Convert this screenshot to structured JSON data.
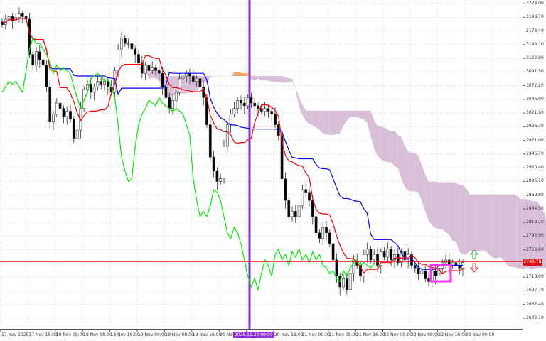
{
  "chart_data": {
    "type": "candlestick",
    "indicator": "ichimoku",
    "y_ticks": [
      "3224.00",
      "3198.70",
      "3173.40",
      "3148.10",
      "3122.80",
      "3097.50",
      "3072.20",
      "3046.90",
      "3021.60",
      "2996.30",
      "2971.00",
      "2945.70",
      "2920.40",
      "2895.10",
      "2869.80",
      "2844.50",
      "2819.20",
      "2793.90",
      "2768.60",
      "2718.00",
      "2692.70",
      "2667.40",
      "2642.10"
    ],
    "ylim": [
      2642.1,
      3224.0
    ],
    "x_ticks": [
      "17 Nov 2025",
      "17 Nov 16:00",
      "18 Nov 00:00",
      "18 Nov 08:00",
      "18 Nov 16:00",
      "19 Nov 00:00",
      "19 Nov 08:00",
      "19 Nov 16:00",
      "20 Nov",
      "",
      "20 Nov 16:00",
      "21 Nov 00:00",
      "21 Nov 08:00",
      "21 Nov 16:00",
      "22 Nov 00:00",
      "22 Nov 08:00",
      "22 Nov 16:00",
      "23 Nov 00:00"
    ],
    "closes": [
      3185,
      3195,
      3200,
      3192,
      3198,
      3205,
      3200,
      3195,
      3130,
      3110,
      3135,
      3120,
      3110,
      3070,
      3005,
      3020,
      3040,
      3030,
      3015,
      3025,
      3010,
      2975,
      2990,
      3030,
      3065,
      3075,
      3060,
      3070,
      3080,
      3075,
      3080,
      3070,
      3060,
      3100,
      3140,
      3160,
      3150,
      3150,
      3140,
      3130,
      3115,
      3095,
      3110,
      3100,
      3105,
      3100,
      3095,
      3070,
      3050,
      3030,
      3045,
      3060,
      3085,
      3090,
      3095,
      3090,
      3080,
      3085,
      3070,
      3050,
      3000,
      2940,
      2915,
      2895,
      2900,
      2960,
      3000,
      3020,
      3030,
      3045,
      3040,
      3035,
      3050,
      3040,
      3035,
      3030,
      3025,
      3030,
      3025,
      3020,
      3000,
      2980,
      2900,
      2860,
      2830,
      2840,
      2830,
      2850,
      2880,
      2875,
      2860,
      2830,
      2800,
      2790,
      2810,
      2800,
      2780,
      2750,
      2720,
      2700,
      2715,
      2695,
      2725,
      2750,
      2740,
      2720,
      2760,
      2770,
      2750,
      2760,
      2740,
      2765,
      2755,
      2770,
      2750,
      2760,
      2745,
      2765,
      2750,
      2760,
      2740,
      2735,
      2725,
      2730,
      2715,
      2710,
      2730,
      2720,
      2735,
      2745,
      2750,
      2740,
      2745,
      2740,
      2735,
      2745
    ],
    "current_price": "2746.78",
    "cursor_time": "2025.11.20 09:00",
    "colors": {
      "tenkan": "#ff0000",
      "kijun": "#0000ff",
      "chikou": "#00ee00",
      "cloud_bull": "#f4a460",
      "cloud_bear": "#d8bfd8",
      "cursor": "#8a2be2",
      "price_line": "#e01010",
      "highlight_box": "#ff33ff",
      "arrow_up": "#33aa33",
      "arrow_down": "#ff3333"
    }
  }
}
